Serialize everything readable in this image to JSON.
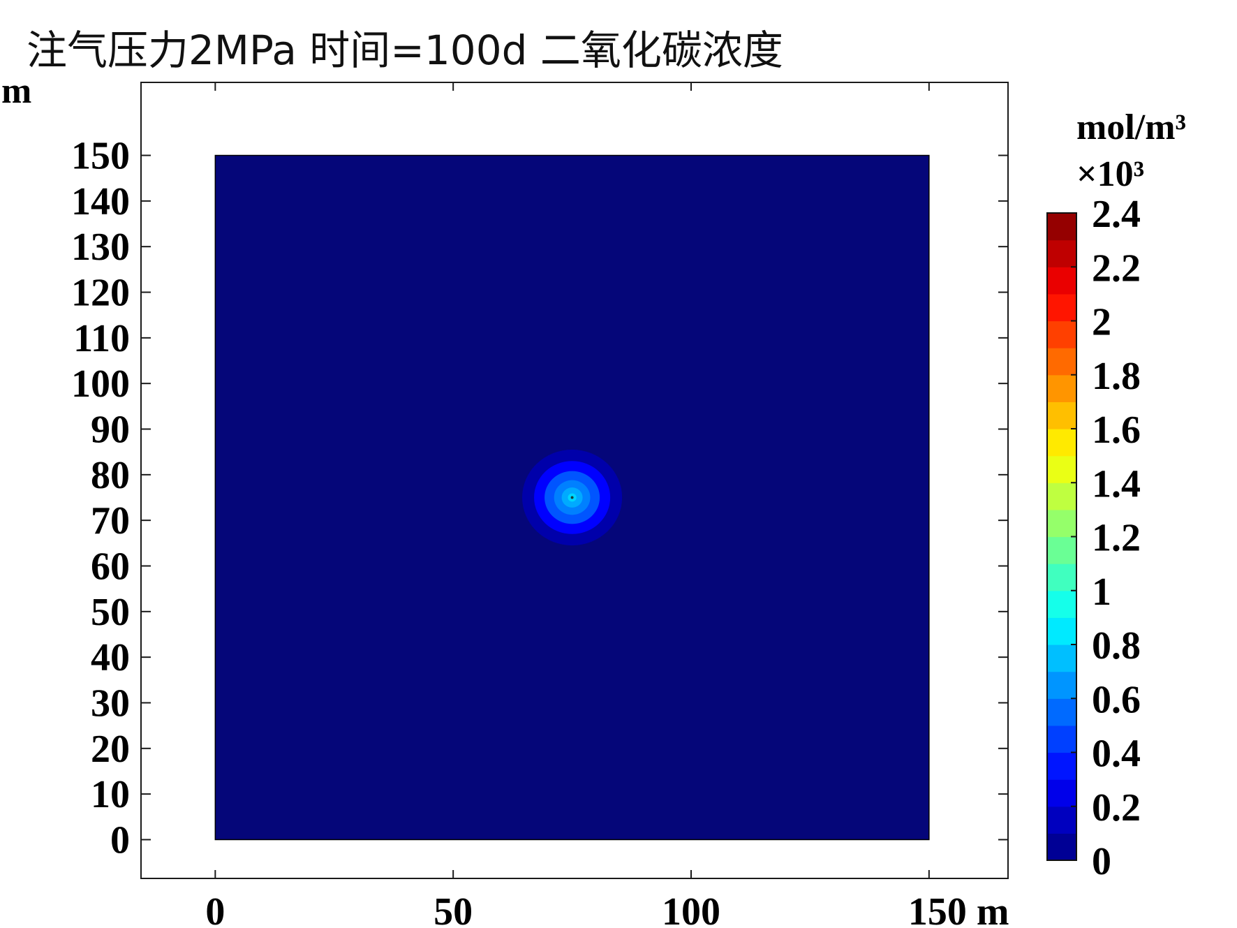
{
  "chart_data": {
    "type": "heatmap",
    "title": "注气压力2MPa 时间=100d 二氧化碳浓度",
    "x_unit": "m",
    "y_unit": "m",
    "xlim": [
      -15.6,
      166.6
    ],
    "ylim": [
      -8.5,
      166.0
    ],
    "domain": {
      "x": [
        0,
        150
      ],
      "y": [
        0,
        150
      ]
    },
    "xticks": [
      0,
      50,
      100,
      150
    ],
    "yticks": [
      0,
      10,
      20,
      30,
      40,
      50,
      60,
      70,
      80,
      90,
      100,
      110,
      120,
      130,
      140,
      150
    ],
    "x_tick_labels": [
      "0",
      "50",
      "100",
      "150 m"
    ],
    "y_tick_labels": [
      "0",
      "10",
      "20",
      "30",
      "40",
      "50",
      "60",
      "70",
      "80",
      "90",
      "100",
      "110",
      "120",
      "130",
      "140",
      "150"
    ],
    "background_value": 0,
    "plume": {
      "center": [
        75,
        75
      ],
      "rings": [
        {
          "radius": 10.5,
          "value": 0.1
        },
        {
          "radius": 8.0,
          "value": 0.3
        },
        {
          "radius": 5.8,
          "value": 0.5
        },
        {
          "radius": 3.8,
          "value": 0.6
        },
        {
          "radius": 2.2,
          "value": 0.7
        },
        {
          "radius": 0.9,
          "value": 0.8
        }
      ]
    },
    "colorbar": {
      "unit": "mol/m³",
      "multiplier": "×10³",
      "range": [
        0,
        2.4
      ],
      "levels": 24,
      "tick_values": [
        0,
        0.2,
        0.4,
        0.6,
        0.8,
        1,
        1.2,
        1.4,
        1.6,
        1.8,
        2,
        2.2,
        2.4
      ],
      "tick_labels": [
        "0",
        "0.2",
        "0.4",
        "0.6",
        "0.8",
        "1",
        "1.2",
        "1.4",
        "1.6",
        "1.8",
        "2",
        "2.2",
        "2.4"
      ]
    }
  }
}
